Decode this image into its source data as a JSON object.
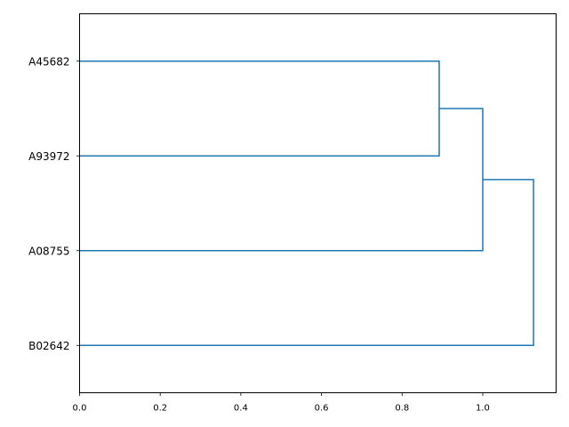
{
  "chart_data": {
    "type": "dendrogram",
    "orientation": "left",
    "leaves": [
      "A45682",
      "A93972",
      "A08755",
      "B02642"
    ],
    "links": [
      {
        "left": "A45682",
        "right": "A93972",
        "distance": 0.892
      },
      {
        "left": "A45682+A93972",
        "right": "A08755",
        "distance": 1.0
      },
      {
        "left": "A45682+A93972+A08755",
        "right": "B02642",
        "distance": 1.126
      }
    ],
    "xlim": [
      0.0,
      1.182
    ],
    "xticks": [
      "0.0",
      "0.2",
      "0.4",
      "0.6",
      "0.8",
      "1.0"
    ],
    "xtick_values": [
      0,
      0.2,
      0.4,
      0.6,
      0.8,
      1.0
    ],
    "line_color": "#1f77b4",
    "grid": false,
    "title": "",
    "xlabel": "",
    "ylabel": ""
  }
}
